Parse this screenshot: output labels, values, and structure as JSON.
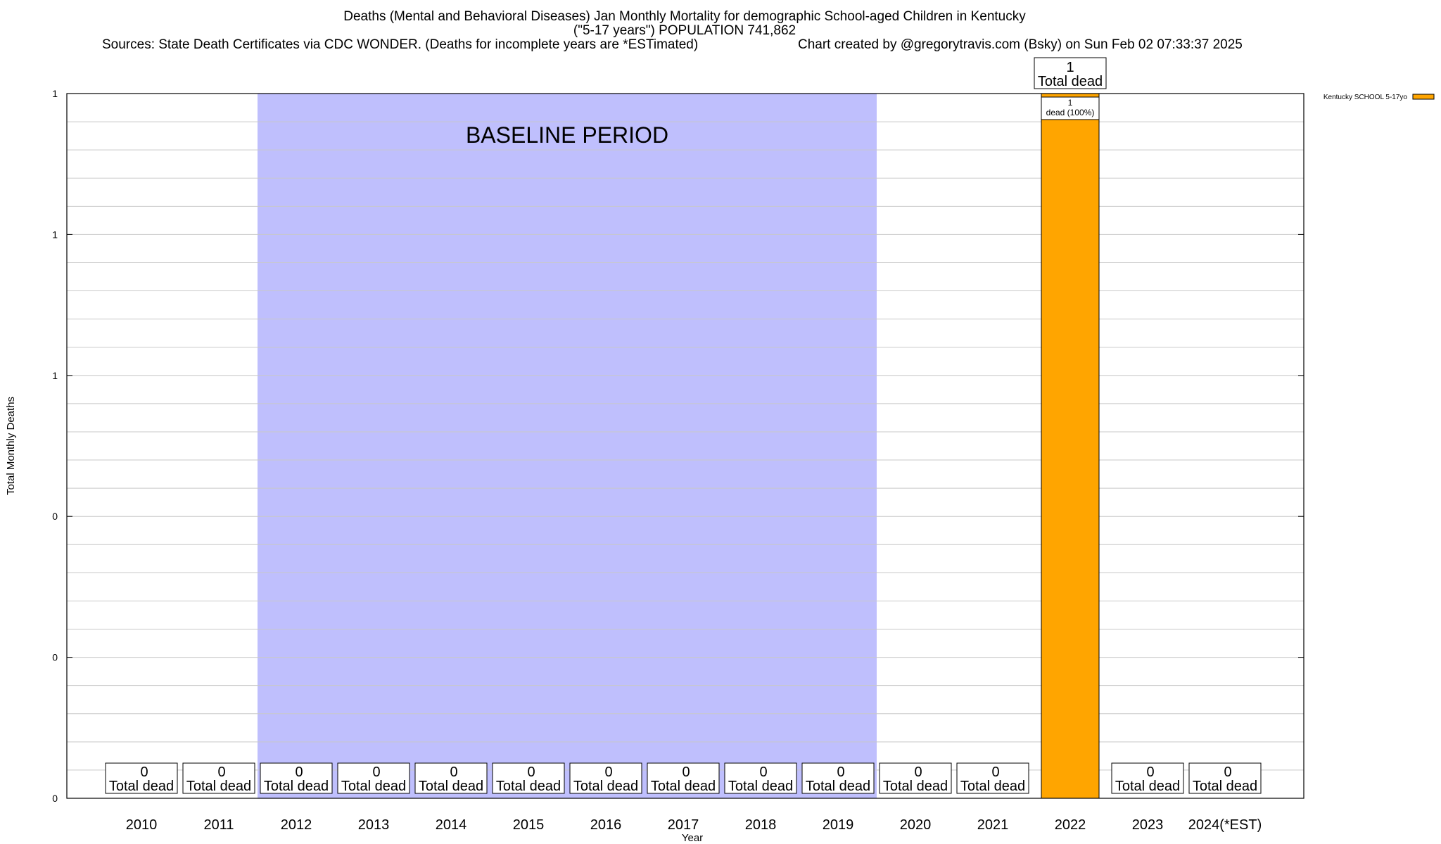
{
  "header": {
    "title_line1": "Deaths (Mental and Behavioral Diseases) Jan Monthly Mortality for demographic School-aged Children in Kentucky",
    "title_line2": "(\"5-17 years\") POPULATION 741,862",
    "sources": "Sources: State Death Certificates via CDC WONDER. (Deaths for incomplete years are *ESTimated)",
    "credit": "Chart created by @gregorytravis.com (Bsky) on Sun Feb 02 07:33:37 2025"
  },
  "chart_data": {
    "type": "bar",
    "xlabel": "Year",
    "ylabel": "Total Monthly Deaths",
    "ylim": [
      0,
      1
    ],
    "y_tick_labels": [
      "0",
      "0",
      "0",
      "1",
      "1",
      "1"
    ],
    "categories": [
      "2010",
      "2011",
      "2012",
      "2013",
      "2014",
      "2015",
      "2016",
      "2017",
      "2018",
      "2019",
      "2020",
      "2021",
      "2022",
      "2023",
      "2024(*EST)"
    ],
    "series": [
      {
        "name": "Kentucky SCHOOL 5-17yo",
        "color": "#ffa500",
        "values": [
          0,
          0,
          0,
          0,
          0,
          0,
          0,
          0,
          0,
          0,
          0,
          0,
          1,
          0,
          0
        ]
      }
    ],
    "total_labels": [
      "0",
      "0",
      "0",
      "0",
      "0",
      "0",
      "0",
      "0",
      "0",
      "0",
      "0",
      "0",
      "1",
      "0",
      "0"
    ],
    "total_suffix": "Total dead",
    "segment_label": {
      "category": "2022",
      "value": "1",
      "text": "dead (100%)"
    },
    "baseline_period": {
      "label": "BASELINE PERIOD",
      "start": "2012",
      "end": "2019",
      "color": "#bfbffd"
    },
    "grid": true,
    "legend_position": "top-right, outside plot"
  }
}
